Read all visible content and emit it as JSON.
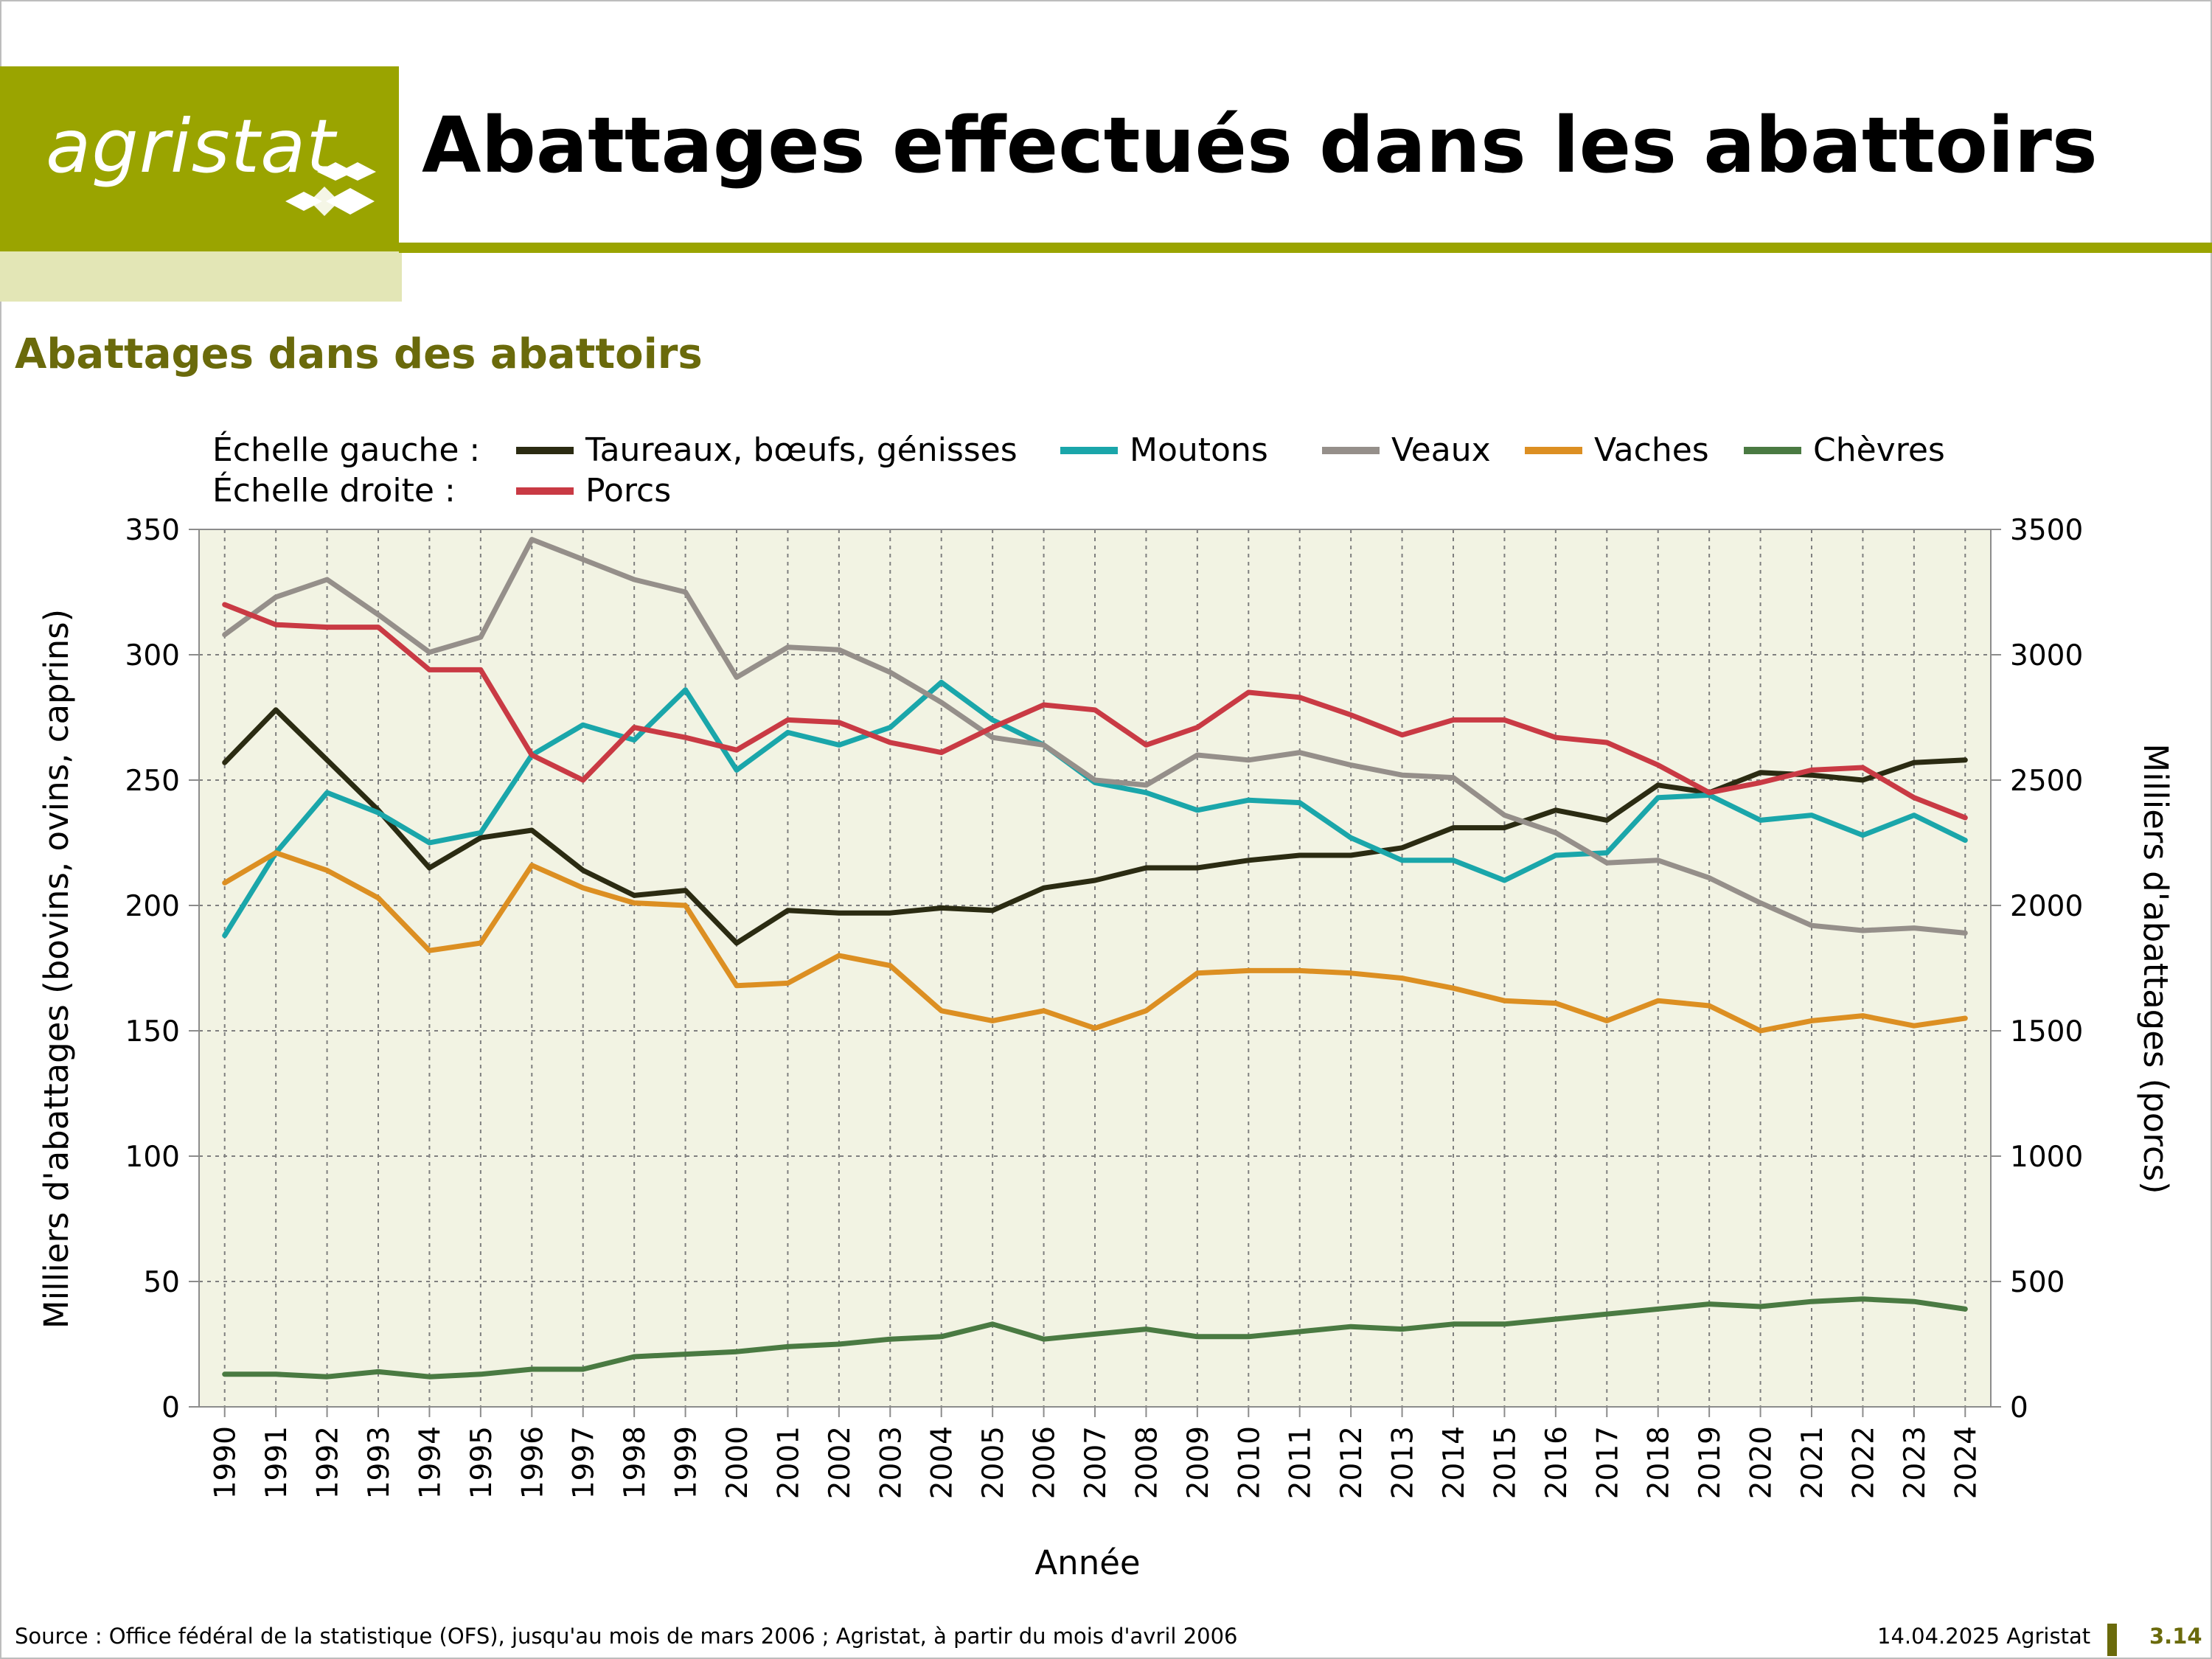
{
  "header": {
    "logo_text": "agristat",
    "title": "Abattages effectués dans les abattoirs"
  },
  "subtitle": "Abattages dans des abattoirs",
  "footer": {
    "source": "Source : Office fédéral de la statistique (OFS), jusqu'au mois de mars 2006 ; Agristat, à partir du mois d'avril 2006",
    "date": "14.04.2025 Agristat",
    "page": "3.14"
  },
  "colors": {
    "brand": "#9aa400",
    "brand_pale": "#e3e6b6",
    "subtitle": "#6a6a0b",
    "plot_bg": "#f2f3e3"
  },
  "chart_data": {
    "type": "line",
    "title": "Abattages dans des abattoirs",
    "xlabel": "Année",
    "ylabel_left": "Milliers d'abattages (bovins, ovins, caprins)",
    "ylabel_right": "Milliers d'abattages (porcs)",
    "ylim_left": [
      0,
      350
    ],
    "ylim_right": [
      0,
      3500
    ],
    "yticks_left": [
      0,
      50,
      100,
      150,
      200,
      250,
      300,
      350
    ],
    "yticks_right": [
      0,
      500,
      1000,
      1500,
      2000,
      2500,
      3000,
      3500
    ],
    "grid": true,
    "legend_placement": "top",
    "legend_left_label": "Échelle gauche :",
    "legend_right_label": "Échelle droite :",
    "x": [
      1990,
      1991,
      1992,
      1993,
      1994,
      1995,
      1996,
      1997,
      1998,
      1999,
      2000,
      2001,
      2002,
      2003,
      2004,
      2005,
      2006,
      2007,
      2008,
      2009,
      2010,
      2011,
      2012,
      2013,
      2014,
      2015,
      2016,
      2017,
      2018,
      2019,
      2020,
      2021,
      2022,
      2023,
      2024
    ],
    "series": [
      {
        "name": "Taureaux, bœufs, génisses",
        "axis": "left",
        "color": "#2b2b12",
        "values": [
          257,
          278,
          258,
          238,
          215,
          227,
          230,
          214,
          204,
          206,
          185,
          198,
          197,
          197,
          199,
          198,
          207,
          210,
          215,
          215,
          218,
          220,
          220,
          223,
          231,
          231,
          238,
          234,
          248,
          245,
          253,
          252,
          250,
          257,
          258
        ]
      },
      {
        "name": "Moutons",
        "axis": "left",
        "color": "#1aa6aa",
        "values": [
          188,
          221,
          245,
          237,
          225,
          229,
          260,
          272,
          266,
          286,
          254,
          269,
          264,
          271,
          289,
          274,
          264,
          249,
          245,
          238,
          242,
          241,
          227,
          218,
          218,
          210,
          220,
          221,
          243,
          244,
          234,
          236,
          228,
          236,
          226
        ]
      },
      {
        "name": "Veaux",
        "axis": "left",
        "color": "#958f8a",
        "values": [
          308,
          323,
          330,
          316,
          301,
          307,
          346,
          338,
          330,
          325,
          291,
          303,
          302,
          293,
          281,
          267,
          264,
          250,
          248,
          260,
          258,
          261,
          256,
          252,
          251,
          236,
          229,
          217,
          218,
          211,
          201,
          192,
          190,
          191,
          189
        ]
      },
      {
        "name": "Vaches",
        "axis": "left",
        "color": "#dc8f22",
        "values": [
          209,
          221,
          214,
          203,
          182,
          185,
          216,
          207,
          201,
          200,
          168,
          169,
          180,
          176,
          158,
          154,
          158,
          151,
          158,
          173,
          174,
          174,
          173,
          171,
          167,
          162,
          161,
          154,
          162,
          160,
          150,
          154,
          156,
          152,
          155
        ]
      },
      {
        "name": "Chèvres",
        "axis": "left",
        "color": "#4a7a42",
        "values": [
          13,
          13,
          12,
          14,
          12,
          13,
          15,
          15,
          20,
          21,
          22,
          24,
          25,
          27,
          28,
          33,
          27,
          29,
          31,
          28,
          28,
          30,
          32,
          31,
          33,
          33,
          35,
          37,
          39,
          41,
          40,
          42,
          43,
          42,
          39
        ]
      },
      {
        "name": "Porcs",
        "axis": "right",
        "color": "#c93a44",
        "values": [
          3200,
          3120,
          3110,
          3110,
          2940,
          2940,
          2600,
          2500,
          2710,
          2670,
          2620,
          2740,
          2730,
          2650,
          2610,
          2710,
          2800,
          2780,
          2640,
          2710,
          2850,
          2830,
          2760,
          2680,
          2740,
          2740,
          2670,
          2650,
          2560,
          2450,
          2490,
          2540,
          2550,
          2430,
          2350
        ]
      }
    ]
  }
}
